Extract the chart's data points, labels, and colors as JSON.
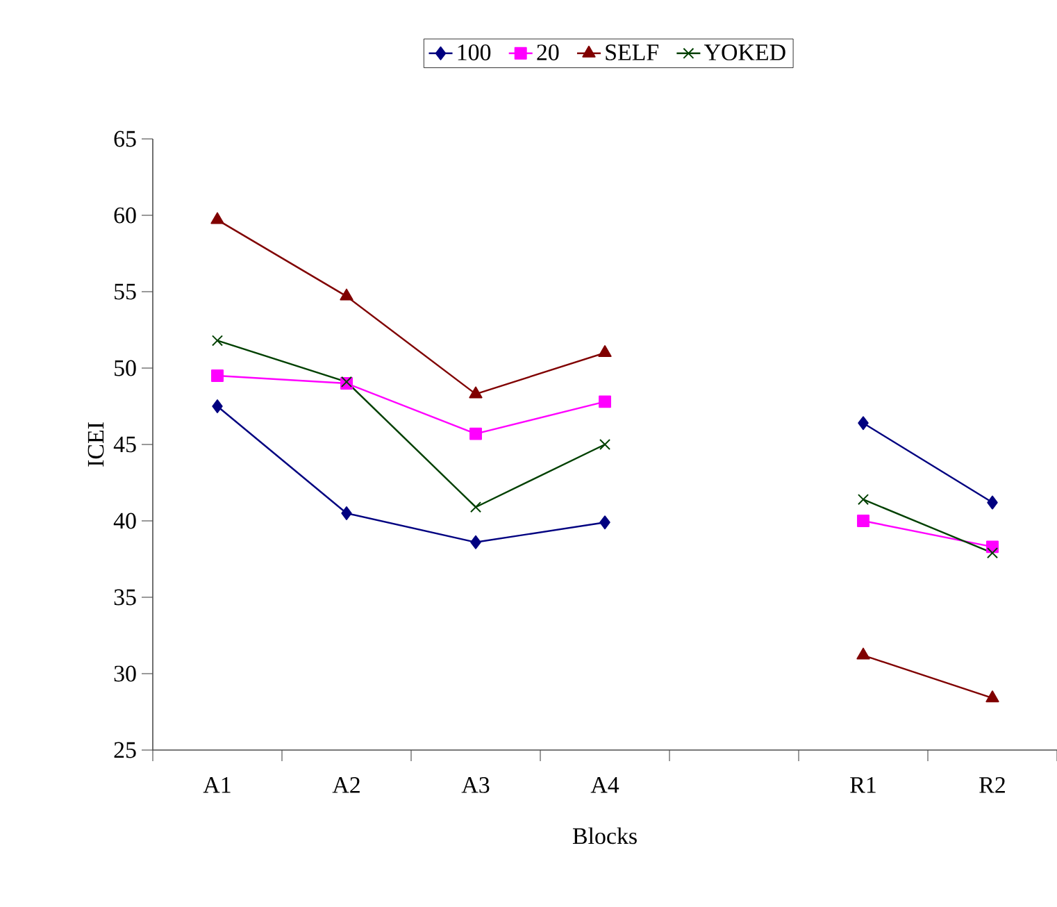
{
  "chart_data": {
    "type": "line",
    "xlabel": "Blocks",
    "ylabel": "ICEI",
    "categories": [
      "A1",
      "A2",
      "A3",
      "A4",
      null,
      "R1",
      "R2"
    ],
    "ylim": [
      25,
      65
    ],
    "yticks": [
      25,
      30,
      35,
      40,
      45,
      50,
      55,
      60,
      65
    ],
    "grid": false,
    "legend": "top",
    "series": [
      {
        "name": "100",
        "color": "#000080",
        "marker": "diamond",
        "values": [
          47.5,
          40.5,
          38.6,
          39.9,
          null,
          46.4,
          41.2
        ]
      },
      {
        "name": "20",
        "color": "#ff00ff",
        "marker": "square",
        "values": [
          49.5,
          49.0,
          45.7,
          47.8,
          null,
          40.0,
          38.3
        ]
      },
      {
        "name": "SELF",
        "color": "#800000",
        "marker": "triangle",
        "values": [
          59.7,
          54.7,
          48.3,
          51.0,
          null,
          31.2,
          28.4
        ]
      },
      {
        "name": "YOKED",
        "color": "#004000",
        "marker": "cross",
        "values": [
          51.8,
          49.1,
          40.9,
          45.0,
          null,
          41.4,
          37.9
        ]
      }
    ]
  }
}
